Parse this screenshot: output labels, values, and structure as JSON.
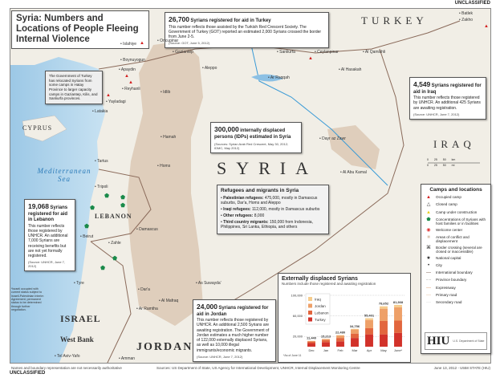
{
  "classification": "UNCLASSIFIED",
  "title": "Syria: Numbers and Locations of People Fleeing Internal Violence",
  "turkey_box": {
    "headline_num": "26,700",
    "headline": "Syrians registered for aid in Turkey",
    "body": "This number reflects those assisted by the Turkish Red Crescent Society. The Government of Turkey (GOT) reported an estimated 2,000 Syrians crossed the border from June 2-5.",
    "source": "(Source: GOT, June 5, 2012)"
  },
  "relocation_note": "The Government of Turkey has relocated Syrians from some camps in Hatay Province to larger capacity camps in Gaziantep, Kilis, and Sanliurfa provinces.",
  "iraq_box": {
    "headline_num": "4,549",
    "headline": "Syrians registered for aid in Iraq",
    "body": "This number reflects those registered by UNHCR. An additional 425 Syrians are awaiting registration.",
    "source": "(Source: UNHCR, June 7, 2012)"
  },
  "idp_box": {
    "headline_num": "300,000",
    "headline": "internally displaced persons (IDPs) estimated in Syria",
    "source": "(Sources: Syrian Arab Red Crescent, May 30, 2012; IDMC, May 2012)"
  },
  "refugees_box": {
    "title": "Refugees and migrants in Syria",
    "items": [
      {
        "label": "Palestinian refugees:",
        "text": "475,000, mostly in Damascus suburbs, Dar'a, Homs and Aleppo"
      },
      {
        "label": "Iraqi refugees:",
        "text": "112,000, mostly in Damascus suburbs"
      },
      {
        "label": "Other refugees:",
        "text": "8,000"
      },
      {
        "label": "Third country migrants:",
        "text": "150,000 from Indonesia, Philippines, Sri Lanka, Ethiopia, and others"
      }
    ]
  },
  "lebanon_box": {
    "headline_num": "19,068",
    "headline": "Syrians registered for aid in Lebanon",
    "body": "This number reflects those registered by UNHCR. An additional 7,000 Syrians are receiving benefits but are not yet formally registered.",
    "source": "(Source: UNHCR, June 7, 2012)"
  },
  "jordan_box": {
    "headline_num": "24,000",
    "headline": "Syrians registered for aid in Jordan",
    "body": "This number reflects those registered by UNHCR. An additional 2,500 Syrians are awaiting registration. The Government of Jordan estimates a much higher number of 122,000 externally displaced Syrians, as well as 10,000 illegal immigrants/economic migrants.",
    "source": "(Source: UNHCR, June 7, 2012)"
  },
  "golan_note": "*Israeli occupied with current status subject to Israeli-Palestinian Interim Agreement; permanent status to be determined through further negotiation.",
  "countries": {
    "turkey": "TURKEY",
    "syria": "SYRIA",
    "iraq": "IRAQ",
    "lebanon": "LEBANON",
    "israel": "ISRAEL",
    "jordan": "JORDAN",
    "cyprus": "CYPRUS",
    "sea": "Mediterranean Sea",
    "west_bank": "West Bank"
  },
  "cities": [
    "Islahiye",
    "Gaziantep",
    "Sanliurfa",
    "Ceylanpinar",
    "Batlek",
    "Zakho",
    "Oncupinar",
    "Boynuyogun",
    "Apaydin",
    "Yayladagi",
    "Reyhanli",
    "Aleppo",
    "Idlib",
    "Ar Raqqah",
    "Al Hasakah",
    "Al Qamishli",
    "Latakia",
    "Hamah",
    "Tartus",
    "Homs",
    "Dayr az Zawr",
    "Al Abu Kamal",
    "Tripoli",
    "Beirut",
    "Zahle",
    "Damascus",
    "Dar'a",
    "As Suwayda'",
    "Tyre",
    "Tel Aviv-Yafo",
    "Amman",
    "Ar Ramtha",
    "Al Mafraq"
  ],
  "scale": {
    "km": "0 25 50 km",
    "mi": "0 25 50 mi"
  },
  "legend": {
    "title": "Camps and locations",
    "items": [
      {
        "icon": "occupied-camp",
        "symbol": "▲",
        "color": "#d42020",
        "label": "Occupied camp"
      },
      {
        "icon": "closed-camp",
        "symbol": "△",
        "color": "#333333",
        "label": "Closed camp"
      },
      {
        "icon": "camp-under-construction",
        "symbol": "▲",
        "color": "#e8d020",
        "label": "Camp under construction"
      },
      {
        "icon": "concentration",
        "symbol": "⬟",
        "color": "#1a8a4a",
        "label": "Concentrations of Syrians with host families or in facilities"
      },
      {
        "icon": "welcome-center",
        "symbol": "◉",
        "color": "#e03030",
        "label": "Welcome center"
      },
      {
        "icon": "conflict-area",
        "symbol": "■",
        "color": "#dcc8b4",
        "label": "Areas of conflict and displacement"
      },
      {
        "icon": "border-crossing",
        "symbol": "⌘",
        "color": "#333333",
        "label": "Border crossing (several are closed or inaccessible)"
      },
      {
        "icon": "national-capital",
        "symbol": "★",
        "color": "#222222",
        "label": "National capital"
      },
      {
        "icon": "city",
        "symbol": "•",
        "color": "#222222",
        "label": "City"
      },
      {
        "icon": "international-boundary",
        "symbol": "—",
        "color": "#7a5a4a",
        "label": "International boundary"
      },
      {
        "icon": "province-boundary",
        "symbol": "-·-",
        "color": "#999999",
        "label": "Province boundary"
      },
      {
        "icon": "expressway",
        "symbol": "—",
        "color": "#e0a070",
        "label": "Expressway"
      },
      {
        "icon": "primary-road",
        "symbol": "—",
        "color": "#e8c0a0",
        "label": "Primary road"
      },
      {
        "icon": "secondary-road",
        "symbol": "—",
        "color": "#dddddd",
        "label": "Secondary road"
      }
    ]
  },
  "logo": {
    "text": "HIU",
    "sub": "U.S. Department of State"
  },
  "chart_data": {
    "type": "bar",
    "stacked": true,
    "title": "Externally displaced Syrians",
    "subtitle": "Numbers include those registered and awaiting registration",
    "categories": [
      "Dec",
      "Jan",
      "Feb",
      "Mar",
      "Apr",
      "May",
      "June*"
    ],
    "totals": [
      "11,440",
      "15,213",
      "22,480",
      "34,756",
      "55,401",
      "78,652",
      "81,368"
    ],
    "yticks": [
      "20,000",
      "60,000",
      "100,000"
    ],
    "ylim": [
      0,
      100000
    ],
    "grid": true,
    "legend_position": "top-left",
    "series": [
      {
        "name": "Turkey",
        "color": "#d2322a",
        "values": [
          7000,
          9000,
          10500,
          17000,
          24000,
          24000,
          26700
        ]
      },
      {
        "name": "Lebanon",
        "color": "#e2663e",
        "values": [
          3000,
          4000,
          6500,
          8500,
          12000,
          26000,
          24068
        ]
      },
      {
        "name": "Jordan",
        "color": "#eea068",
        "values": [
          1200,
          2000,
          4800,
          8000,
          16000,
          24000,
          26000
        ]
      },
      {
        "name": "Iraq",
        "color": "#f6cc8c",
        "values": [
          240,
          213,
          680,
          1256,
          3401,
          4652,
          4600
        ]
      }
    ],
    "footnote": "*As of June 11"
  },
  "footer": {
    "left": "Names and boundary representation are not necessarily authoritative",
    "center": "Sources: US Department of State, US Agency for International Development, UNHCR, Internal Displacement Monitoring Centre",
    "right": "June 13, 2012 - U558 STATE (HIU)"
  }
}
